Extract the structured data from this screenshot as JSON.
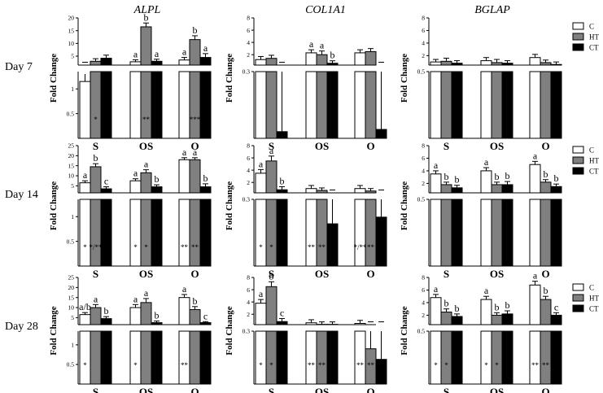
{
  "genes": [
    "ALPL",
    "COL1A1",
    "BGLAP"
  ],
  "rows": [
    "Day 7",
    "Day 14",
    "Day 28"
  ],
  "legend": [
    {
      "label": "C",
      "color": "#ffffff"
    },
    {
      "label": "HT",
      "color": "#808080"
    },
    {
      "label": "CT",
      "color": "#000000"
    }
  ],
  "chart_data": [
    {
      "type": "bar",
      "gene": "ALPL",
      "row": "Day 7",
      "ylabel": "Fold Change",
      "categories": [
        "S",
        "OS",
        "O"
      ],
      "upper": {
        "ticks": [
          "5",
          "10",
          "15",
          "20"
        ],
        "ylim": [
          1.5,
          20
        ]
      },
      "lower": {
        "ticks": [
          "0.5",
          "1"
        ],
        "ylim": [
          0,
          1.35
        ]
      },
      "series": [
        {
          "name": "C",
          "values": [
            1.15,
            2.8,
            3.5
          ],
          "err": [
            0.15,
            0.8,
            1.0
          ]
        },
        {
          "name": "HT",
          "values": [
            3.0,
            16.5,
            11.5
          ],
          "err": [
            1.0,
            1.5,
            1.5
          ]
        },
        {
          "name": "CT",
          "values": [
            4.2,
            3.0,
            4.5
          ],
          "err": [
            1.2,
            0.8,
            1.5
          ]
        }
      ],
      "letters": [
        [
          "",
          "",
          ""
        ],
        [
          "a",
          "b",
          "a"
        ],
        [
          "a",
          "b",
          "a"
        ]
      ],
      "stars": [
        [
          "",
          "*",
          ""
        ],
        [
          "",
          "**",
          ""
        ],
        [
          "",
          "***",
          ""
        ]
      ]
    },
    {
      "type": "bar",
      "gene": "COL1A1",
      "row": "Day 7",
      "ylabel": "Fold Change",
      "categories": [
        "S",
        "OS",
        "O"
      ],
      "upper": {
        "ticks": [
          "2",
          "4",
          "6",
          "8"
        ],
        "ylim": [
          0.3,
          8
        ]
      },
      "lower": {
        "ticks": [
          "0.3"
        ],
        "ylim": [
          0,
          0.3
        ]
      },
      "series": [
        {
          "name": "C",
          "values": [
            1.2,
            2.3,
            2.3
          ],
          "err": [
            0.5,
            0.5,
            0.5
          ]
        },
        {
          "name": "HT",
          "values": [
            1.4,
            2.0,
            2.5
          ],
          "err": [
            0.5,
            0.6,
            0.5
          ]
        },
        {
          "name": "CT",
          "values": [
            0.03,
            0.6,
            0.04
          ],
          "err": [
            0.4,
            0.4,
            0.4
          ]
        }
      ],
      "letters": [
        [
          "",
          "",
          ""
        ],
        [
          "a",
          "a",
          "b"
        ],
        [
          "",
          "",
          ""
        ]
      ],
      "stars": [
        [
          "",
          "",
          ""
        ],
        [
          "",
          "",
          ""
        ],
        [
          "",
          "",
          ""
        ]
      ]
    },
    {
      "type": "bar",
      "gene": "BGLAP",
      "row": "Day 7",
      "ylabel": "Fold Change",
      "categories": [
        "S",
        "OS",
        "O"
      ],
      "upper": {
        "ticks": [
          "2",
          "4",
          "6",
          "8"
        ],
        "ylim": [
          0.5,
          8
        ]
      },
      "lower": {
        "ticks": [
          "0.5"
        ],
        "ylim": [
          0,
          0.5
        ]
      },
      "series": [
        {
          "name": "C",
          "values": [
            1.0,
            1.2,
            1.7
          ],
          "err": [
            0.4,
            0.5,
            0.5
          ]
        },
        {
          "name": "HT",
          "values": [
            1.1,
            0.9,
            0.9
          ],
          "err": [
            0.5,
            0.5,
            0.4
          ]
        },
        {
          "name": "CT",
          "values": [
            0.8,
            0.8,
            0.6
          ],
          "err": [
            0.4,
            0.4,
            0.4
          ]
        }
      ],
      "letters": [
        [
          "",
          "",
          ""
        ],
        [
          "",
          "",
          ""
        ],
        [
          "",
          "",
          ""
        ]
      ],
      "stars": [
        [
          "",
          "",
          ""
        ],
        [
          "",
          "",
          ""
        ],
        [
          "",
          "",
          ""
        ]
      ]
    },
    {
      "type": "bar",
      "gene": "ALPL",
      "row": "Day 14",
      "ylabel": "Fold Change",
      "categories": [
        "S",
        "OS",
        "O"
      ],
      "upper": {
        "ticks": [
          "5",
          "10",
          "15",
          "20",
          "25"
        ],
        "ylim": [
          1.5,
          25
        ]
      },
      "lower": {
        "ticks": [
          "0.5",
          "1"
        ],
        "ylim": [
          0,
          1.35
        ]
      },
      "series": [
        {
          "name": "C",
          "values": [
            6.5,
            7.5,
            18.0
          ],
          "err": [
            1.0,
            1.0,
            1.0
          ]
        },
        {
          "name": "HT",
          "values": [
            14.5,
            11.5,
            18.0
          ],
          "err": [
            1.5,
            1.5,
            1.0
          ]
        },
        {
          "name": "CT",
          "values": [
            3.5,
            4.5,
            4.5
          ],
          "err": [
            1.0,
            1.0,
            1.5
          ]
        }
      ],
      "letters": [
        [
          "a",
          "b",
          "c"
        ],
        [
          "a",
          "a",
          "b"
        ],
        [
          "a",
          "a",
          "b"
        ]
      ],
      "stars": [
        [
          "*",
          "*/**",
          ""
        ],
        [
          "*",
          "*",
          ""
        ],
        [
          "**",
          "**",
          ""
        ]
      ]
    },
    {
      "type": "bar",
      "gene": "COL1A1",
      "row": "Day 14",
      "ylabel": "Fold Change",
      "categories": [
        "S",
        "OS",
        "O"
      ],
      "upper": {
        "ticks": [
          "2",
          "4",
          "6",
          "8"
        ],
        "ylim": [
          0.3,
          8
        ]
      },
      "lower": {
        "ticks": [
          "0.3"
        ],
        "ylim": [
          0,
          0.3
        ]
      },
      "series": [
        {
          "name": "C",
          "values": [
            3.5,
            1.0,
            1.0
          ],
          "err": [
            0.6,
            0.5,
            0.5
          ]
        },
        {
          "name": "HT",
          "values": [
            5.5,
            0.7,
            0.6
          ],
          "err": [
            0.8,
            0.4,
            0.4
          ]
        },
        {
          "name": "CT",
          "values": [
            0.8,
            0.19,
            0.22
          ],
          "err": [
            0.5,
            0.5,
            0.5
          ]
        }
      ],
      "letters": [
        [
          "a",
          "a",
          "b"
        ],
        [
          "",
          "",
          ""
        ],
        [
          "",
          "",
          ""
        ]
      ],
      "stars": [
        [
          "*",
          "*",
          ""
        ],
        [
          "**",
          "**",
          ""
        ],
        [
          "*/**",
          "**",
          ""
        ]
      ]
    },
    {
      "type": "bar",
      "gene": "BGLAP",
      "row": "Day 14",
      "ylabel": "Fold Change",
      "categories": [
        "S",
        "OS",
        "O"
      ],
      "upper": {
        "ticks": [
          "2",
          "4",
          "6",
          "8"
        ],
        "ylim": [
          0.5,
          8
        ]
      },
      "lower": {
        "ticks": [
          "0.5"
        ],
        "ylim": [
          0,
          0.5
        ]
      },
      "series": [
        {
          "name": "C",
          "values": [
            3.5,
            4.0,
            5.0
          ],
          "err": [
            0.5,
            0.5,
            0.5
          ]
        },
        {
          "name": "HT",
          "values": [
            1.8,
            1.8,
            2.2
          ],
          "err": [
            0.4,
            0.4,
            0.4
          ]
        },
        {
          "name": "CT",
          "values": [
            1.3,
            1.8,
            1.5
          ],
          "err": [
            0.4,
            0.5,
            0.4
          ]
        }
      ],
      "letters": [
        [
          "a",
          "b",
          "b"
        ],
        [
          "a",
          "b",
          "b"
        ],
        [
          "a",
          "b",
          "b"
        ]
      ],
      "stars": [
        [
          "",
          "",
          ""
        ],
        [
          "",
          "",
          ""
        ],
        [
          "",
          "",
          ""
        ]
      ]
    },
    {
      "type": "bar",
      "gene": "ALPL",
      "row": "Day 28",
      "ylabel": "Fold Change",
      "categories": [
        "S",
        "OS",
        "O"
      ],
      "upper": {
        "ticks": [
          "5",
          "10",
          "15",
          "20",
          "25"
        ],
        "ylim": [
          1.5,
          25
        ]
      },
      "lower": {
        "ticks": [
          "0.5",
          "1"
        ],
        "ylim": [
          0,
          1.35
        ]
      },
      "series": [
        {
          "name": "C",
          "values": [
            6.5,
            10.0,
            15.0
          ],
          "err": [
            1.0,
            1.5,
            1.5
          ]
        },
        {
          "name": "HT",
          "values": [
            10.0,
            12.5,
            9.0
          ],
          "err": [
            1.5,
            2.0,
            1.5
          ]
        },
        {
          "name": "CT",
          "values": [
            4.5,
            2.5,
            2.5
          ],
          "err": [
            1.0,
            0.8,
            0.5
          ]
        }
      ],
      "letters": [
        [
          "a/b",
          "a",
          "b"
        ],
        [
          "a",
          "a",
          "b"
        ],
        [
          "a",
          "b",
          "c"
        ]
      ],
      "stars": [
        [
          "*",
          "",
          ""
        ],
        [
          "*",
          "",
          ""
        ],
        [
          "**",
          "",
          ""
        ]
      ]
    },
    {
      "type": "bar",
      "gene": "COL1A1",
      "row": "Day 28",
      "ylabel": "Fold Change",
      "categories": [
        "S",
        "OS",
        "O"
      ],
      "upper": {
        "ticks": [
          "2",
          "4",
          "6",
          "8"
        ],
        "ylim": [
          0.3,
          8
        ]
      },
      "lower": {
        "ticks": [
          "0.3"
        ],
        "ylim": [
          0,
          0.3
        ]
      },
      "series": [
        {
          "name": "C",
          "values": [
            3.8,
            0.6,
            0.5
          ],
          "err": [
            0.6,
            0.5,
            0.5
          ]
        },
        {
          "name": "HT",
          "values": [
            6.5,
            0.35,
            0.2
          ],
          "err": [
            0.8,
            0.4,
            0.4
          ]
        },
        {
          "name": "CT",
          "values": [
            0.8,
            0.35,
            0.14
          ],
          "err": [
            0.5,
            0.4,
            0.5
          ]
        }
      ],
      "letters": [
        [
          "a",
          "b",
          "c"
        ],
        [
          "",
          "",
          ""
        ],
        [
          "",
          "",
          ""
        ]
      ],
      "stars": [
        [
          "*",
          "*",
          ""
        ],
        [
          "**",
          "**",
          ""
        ],
        [
          "**",
          "**",
          ""
        ]
      ]
    },
    {
      "type": "bar",
      "gene": "BGLAP",
      "row": "Day 28",
      "ylabel": "Fold Change",
      "categories": [
        "S",
        "OS",
        "O"
      ],
      "upper": {
        "ticks": [
          "2",
          "4",
          "6",
          "8"
        ],
        "ylim": [
          0.5,
          8
        ]
      },
      "lower": {
        "ticks": [
          "0.5"
        ],
        "ylim": [
          0,
          0.5
        ]
      },
      "series": [
        {
          "name": "C",
          "values": [
            4.8,
            4.5,
            6.8
          ],
          "err": [
            0.5,
            0.5,
            0.6
          ]
        },
        {
          "name": "HT",
          "values": [
            2.5,
            2.0,
            4.5
          ],
          "err": [
            0.5,
            0.4,
            0.5
          ]
        },
        {
          "name": "CT",
          "values": [
            1.8,
            2.2,
            2.0
          ],
          "err": [
            0.4,
            0.5,
            0.4
          ]
        }
      ],
      "letters": [
        [
          "a",
          "b",
          "b"
        ],
        [
          "a",
          "b",
          "b"
        ],
        [
          "a",
          "b",
          "c"
        ]
      ],
      "stars": [
        [
          "*",
          "*",
          ""
        ],
        [
          "*",
          "*",
          ""
        ],
        [
          "**",
          "**",
          ""
        ]
      ]
    }
  ]
}
